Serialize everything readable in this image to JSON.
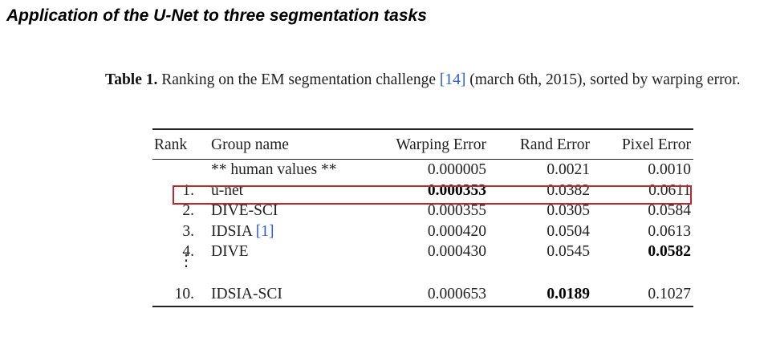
{
  "slide_title": "Application of the U-Net to three segmentation tasks",
  "caption": {
    "label": "Table 1.",
    "text_before_ref": " Ranking on the EM segmentation challenge ",
    "ref": "[14]",
    "text_after_ref": " (march 6th, 2015), sorted by warping error."
  },
  "table": {
    "headers": [
      "Rank",
      "Group name",
      "Warping Error",
      "Rand Error",
      "Pixel Error"
    ],
    "rows": [
      {
        "rank": "",
        "name": "** human values **",
        "name_ref": "",
        "warp": "0.000005",
        "rand": "0.0021",
        "pixel": "0.0010"
      },
      {
        "rank": "1.",
        "name": "u-net",
        "name_ref": "",
        "warp": "0.000353",
        "rand": "0.0382",
        "pixel": "0.0611"
      },
      {
        "rank": "2.",
        "name": "DIVE-SCI",
        "name_ref": "",
        "warp": "0.000355",
        "rand": "0.0305",
        "pixel": "0.0584"
      },
      {
        "rank": "3.",
        "name": "IDSIA ",
        "name_ref": "[1]",
        "warp": "0.000420",
        "rand": "0.0504",
        "pixel": "0.0613"
      },
      {
        "rank": "4.",
        "name": "DIVE",
        "name_ref": "",
        "warp": "0.000430",
        "rand": "0.0545",
        "pixel": "0.0582"
      }
    ],
    "ellipsis": "⋮",
    "last_row": {
      "rank": "10.",
      "name": "IDSIA-SCI",
      "warp": "0.000653",
      "rand": "0.0189",
      "pixel": "0.1027"
    }
  },
  "colors": {
    "highlight_border": "#c0272d",
    "reference_link": "#2a5bd7"
  }
}
